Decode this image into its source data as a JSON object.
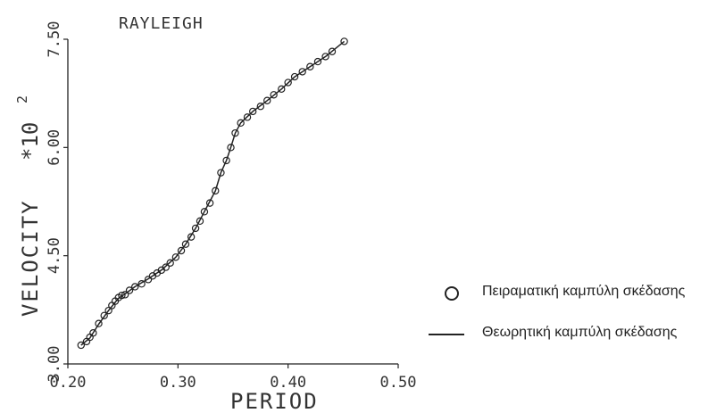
{
  "chart_data": {
    "type": "scatter",
    "title": "RAYLEIGH",
    "xlabel": "PERIOD",
    "ylabel": "VELOCITY *10²",
    "ylabel_main": "VELOCITY",
    "ylabel_factor": "*10",
    "ylabel_exp": "2",
    "xlim": [
      0.2,
      0.5
    ],
    "ylim": [
      3.0,
      7.5
    ],
    "x_ticks": [
      0.2,
      0.3,
      0.4,
      0.5
    ],
    "x_tick_labels": [
      "0.20",
      "0.30",
      "0.40",
      "0.50"
    ],
    "y_ticks": [
      3.0,
      4.5,
      6.0,
      7.5
    ],
    "y_tick_labels": [
      "3.00",
      "4.50",
      "6.00",
      "7.50"
    ],
    "grid": false,
    "legend_position": "right",
    "series": [
      {
        "name": "Πειραματική καμπύλη σκέδασης",
        "kind": "markers",
        "marker": "open-circle",
        "x": [
          0.212,
          0.217,
          0.22,
          0.223,
          0.228,
          0.233,
          0.237,
          0.24,
          0.243,
          0.246,
          0.249,
          0.252,
          0.256,
          0.261,
          0.267,
          0.273,
          0.277,
          0.281,
          0.285,
          0.289,
          0.293,
          0.298,
          0.303,
          0.307,
          0.312,
          0.316,
          0.32,
          0.324,
          0.329,
          0.334,
          0.339,
          0.344,
          0.348,
          0.352,
          0.357,
          0.363,
          0.368,
          0.375,
          0.381,
          0.387,
          0.394,
          0.4,
          0.406,
          0.413,
          0.42,
          0.427,
          0.434,
          0.44,
          0.451
        ],
        "y": [
          3.26,
          3.31,
          3.37,
          3.43,
          3.56,
          3.67,
          3.74,
          3.81,
          3.87,
          3.92,
          3.95,
          3.96,
          4.02,
          4.07,
          4.11,
          4.17,
          4.22,
          4.26,
          4.3,
          4.34,
          4.4,
          4.48,
          4.57,
          4.66,
          4.76,
          4.88,
          4.98,
          5.11,
          5.23,
          5.4,
          5.65,
          5.82,
          6.0,
          6.2,
          6.34,
          6.42,
          6.5,
          6.57,
          6.65,
          6.73,
          6.81,
          6.9,
          6.98,
          7.05,
          7.12,
          7.19,
          7.26,
          7.33,
          7.47
        ]
      },
      {
        "name": "Θεωρητική καμπύλη σκέδασης",
        "kind": "line",
        "x": [
          0.212,
          0.22,
          0.228,
          0.237,
          0.246,
          0.252,
          0.261,
          0.273,
          0.285,
          0.298,
          0.307,
          0.316,
          0.324,
          0.334,
          0.339,
          0.344,
          0.348,
          0.352,
          0.357,
          0.368,
          0.381,
          0.394,
          0.406,
          0.42,
          0.434,
          0.451
        ],
        "y": [
          3.26,
          3.36,
          3.55,
          3.74,
          3.91,
          3.97,
          4.07,
          4.18,
          4.3,
          4.48,
          4.66,
          4.88,
          5.11,
          5.4,
          5.65,
          5.82,
          6.0,
          6.2,
          6.34,
          6.5,
          6.65,
          6.81,
          6.98,
          7.12,
          7.26,
          7.47
        ]
      }
    ]
  },
  "legend": {
    "items": [
      {
        "label": "Πειραματική καμπύλη σκέδασης"
      },
      {
        "label": "Θεωρητική καμπύλη σκέδασης"
      }
    ]
  },
  "colors": {
    "ink": "#222222",
    "background": "#ffffff"
  }
}
